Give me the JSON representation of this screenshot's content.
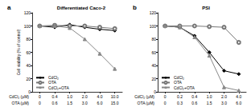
{
  "chart_data": [
    {
      "type": "line",
      "label": "a",
      "title": "Differentiated Caco-2",
      "y_label": "Cell viability (% of control)",
      "x_label": "CdCl₂ (µM)",
      "categories": [
        "0",
        "0.4",
        "1.0",
        "2.0",
        "4.0",
        "10.0"
      ],
      "x2_label": "OTA (µM)",
      "categories2": [
        "0",
        "0.6",
        "1.5",
        "3.0",
        "6.0",
        "15.0"
      ],
      "ylim": [
        0,
        120
      ],
      "yticks": [
        0,
        20,
        40,
        60,
        80,
        100,
        120
      ],
      "legend": "lower left",
      "grid": false,
      "series": [
        {
          "name": "CdCl₂",
          "color": "#000000",
          "marker": "diamond",
          "values": [
            100,
            98,
            102,
            98,
            95,
            93
          ]
        },
        {
          "name": "OTA",
          "color": "#777777",
          "marker": "emptyCircle",
          "values": [
            100,
            101,
            100,
            100,
            98,
            96
          ]
        },
        {
          "name": "CdCl₂+OTA",
          "color": "#888888",
          "marker": "triangle",
          "values": [
            100,
            100,
            97,
            80,
            58,
            35
          ]
        }
      ]
    },
    {
      "type": "line",
      "label": "b",
      "title": "PSI",
      "x_label": "CdCl₂ (µM)",
      "categories": [
        "0",
        "0.2",
        "0.4",
        "1.0",
        "2.0",
        "4.0"
      ],
      "x2_label": "OTA (µM)",
      "categories2": [
        "0",
        "0.3",
        "0.6",
        "1.5",
        "3.0",
        "6.0"
      ],
      "ylim": [
        0,
        120
      ],
      "yticks": [
        0,
        20,
        40,
        60,
        80,
        100,
        120
      ],
      "legend": "lower left",
      "grid": false,
      "series": [
        {
          "name": "CdCl₂",
          "color": "#000000",
          "marker": "diamond",
          "values": [
            100,
            98,
            85,
            60,
            32,
            27
          ]
        },
        {
          "name": "OTA",
          "color": "#777777",
          "marker": "emptyCircle",
          "values": [
            100,
            100,
            100,
            99,
            98,
            75
          ]
        },
        {
          "name": "CdCl₂+OTA",
          "color": "#888888",
          "marker": "triangle",
          "values": [
            100,
            98,
            83,
            55,
            7,
            2
          ]
        }
      ]
    }
  ]
}
